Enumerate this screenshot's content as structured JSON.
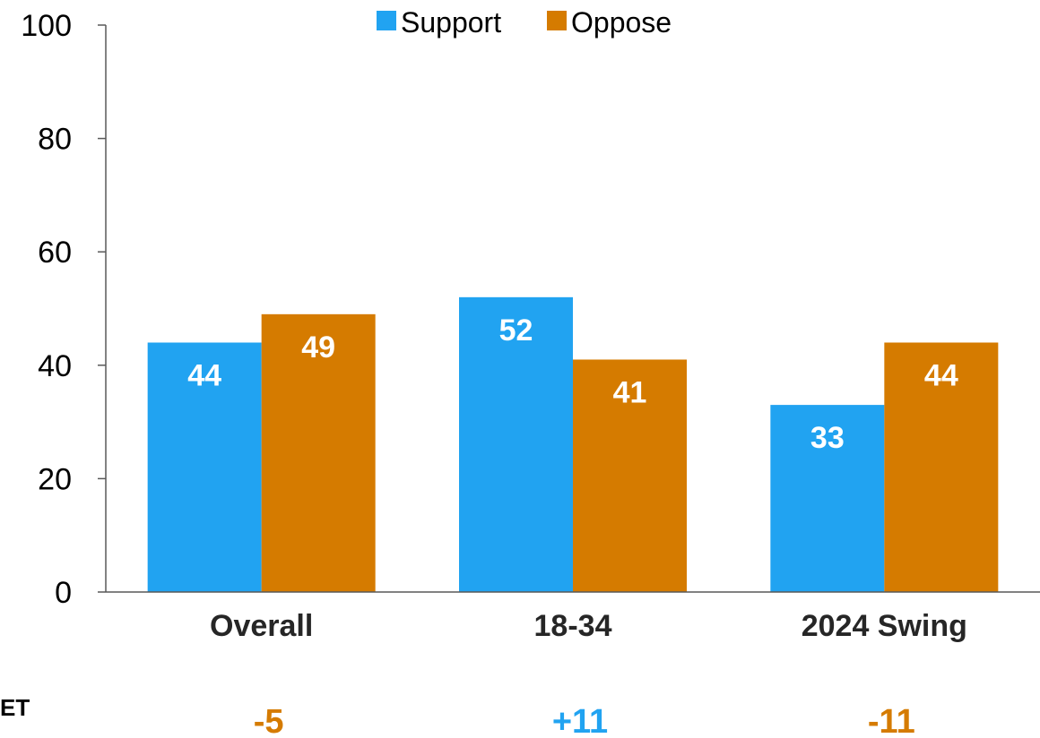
{
  "chart_data": {
    "type": "bar",
    "categories": [
      "Overall",
      "18-34",
      "2024 Swing"
    ],
    "series": [
      {
        "name": "Support",
        "values": [
          44,
          52,
          33
        ],
        "color": "#21a3f1"
      },
      {
        "name": "Oppose",
        "values": [
          49,
          41,
          44
        ],
        "color": "#d57b00"
      }
    ],
    "ylim": [
      0,
      100
    ],
    "yticks": [
      0,
      20,
      40,
      60,
      80,
      100
    ],
    "legend_position": "top-center",
    "grid": false,
    "net": {
      "label": "ET",
      "values": [
        "-5",
        "+11",
        "-11"
      ],
      "colors": [
        "#d57b00",
        "#21a3f1",
        "#d57b00"
      ]
    }
  }
}
